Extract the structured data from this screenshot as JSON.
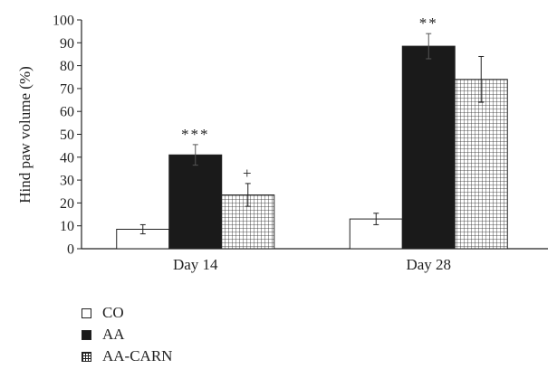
{
  "chart_data": {
    "type": "bar",
    "ylabel": "Hind paw volume (%)",
    "xlabel": "",
    "ylim": [
      0,
      100
    ],
    "yticks": [
      0,
      10,
      20,
      30,
      40,
      50,
      60,
      70,
      80,
      90,
      100
    ],
    "categories": [
      "Day 14",
      "Day 28"
    ],
    "series": [
      {
        "name": "CO",
        "values": [
          8.5,
          13
        ],
        "errors": [
          2,
          2.5
        ],
        "annotations": [
          "",
          ""
        ],
        "fill": "white"
      },
      {
        "name": "AA",
        "values": [
          41,
          88.5
        ],
        "errors": [
          4.5,
          5.5
        ],
        "annotations": [
          "***",
          "**"
        ],
        "fill": "black"
      },
      {
        "name": "AA-CARN",
        "values": [
          23.5,
          74
        ],
        "errors": [
          5,
          10
        ],
        "annotations": [
          "+",
          ""
        ],
        "fill": "grid"
      }
    ],
    "legend_position": "bottom-left",
    "grid": false
  },
  "colors": {
    "axis": "#222222",
    "dark_bar": "#1a1a1a",
    "light_bar": "#ffffff"
  }
}
